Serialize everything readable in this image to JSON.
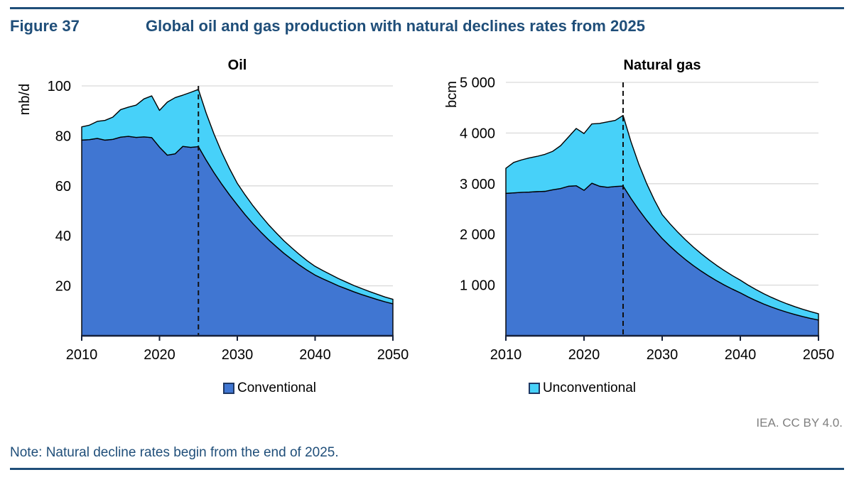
{
  "header": {
    "figure_label": "Figure 37",
    "title": "Global oil and gas production with natural declines rates from 2025"
  },
  "footer": {
    "attribution": "IEA. CC BY 4.0.",
    "note": "Note: Natural decline rates begin from the end of 2025."
  },
  "colors": {
    "conventional": "#4076D2",
    "unconventional": "#47D1F9",
    "navy": "#1F4E79",
    "gridline": "#D9D9D9",
    "axis": "#16213A",
    "outline": "#000000",
    "dashed_line": "#111111"
  },
  "legend": [
    {
      "label": "Conventional",
      "color_key": "conventional"
    },
    {
      "label": "Unconventional",
      "color_key": "unconventional"
    }
  ],
  "chart_data": [
    {
      "type": "area",
      "stacked": true,
      "title": "Oil",
      "ylabel": "mb/d",
      "ylim": [
        0,
        100
      ],
      "yticks": [
        20,
        40,
        60,
        80,
        100
      ],
      "ytick_labels": [
        "20",
        "40",
        "60",
        "80",
        "100"
      ],
      "xlim": [
        2010,
        2050
      ],
      "xticks": [
        2010,
        2020,
        2030,
        2040,
        2050
      ],
      "x_start": 2010,
      "annotation_line_x": 2025,
      "grid": true,
      "legend_position": "bottom",
      "series": [
        {
          "name": "Conventional",
          "values": [
            78.3,
            78.5,
            79.0,
            78.3,
            78.6,
            79.5,
            79.8,
            79.4,
            79.6,
            79.3,
            75.5,
            72.3,
            72.8,
            75.8,
            75.4,
            75.7,
            70.3,
            65.3,
            60.7,
            56.4,
            52.4,
            48.5,
            44.9,
            41.6,
            38.5,
            35.7,
            33.0,
            30.6,
            28.3,
            26.2,
            24.3,
            22.8,
            21.4,
            20.0,
            18.8,
            17.6,
            16.5,
            15.5,
            14.5,
            13.6,
            12.8
          ]
        },
        {
          "name": "Unconventional",
          "values": [
            5.3,
            5.8,
            6.8,
            7.9,
            8.9,
            11.0,
            11.7,
            12.9,
            15.2,
            16.7,
            14.7,
            21.2,
            22.5,
            20.5,
            22.0,
            22.9,
            18.8,
            15.5,
            12.7,
            10.5,
            8.6,
            7.9,
            7.2,
            6.6,
            6.0,
            5.5,
            5.0,
            4.6,
            4.2,
            3.8,
            3.5,
            3.3,
            3.1,
            2.9,
            2.7,
            2.5,
            2.4,
            2.2,
            2.1,
            1.9,
            1.8
          ]
        }
      ]
    },
    {
      "type": "area",
      "stacked": true,
      "title": "Natural gas",
      "ylabel": "bcm",
      "ylim": [
        0,
        5000
      ],
      "yticks": [
        1000,
        2000,
        3000,
        4000,
        5000
      ],
      "ytick_labels": [
        "1 000",
        "2 000",
        "3 000",
        "4 000",
        "5 000"
      ],
      "xlim": [
        2010,
        2050
      ],
      "xticks": [
        2010,
        2020,
        2030,
        2040,
        2050
      ],
      "x_start": 2010,
      "annotation_line_x": 2025,
      "grid": true,
      "legend_position": "bottom",
      "series": [
        {
          "name": "Conventional",
          "values": [
            2810,
            2820,
            2830,
            2835,
            2845,
            2850,
            2880,
            2905,
            2950,
            2960,
            2870,
            3010,
            2950,
            2930,
            2945,
            2955,
            2712,
            2488,
            2283,
            2095,
            1920,
            1769,
            1630,
            1502,
            1384,
            1276,
            1176,
            1083,
            998,
            920,
            848,
            767,
            694,
            627,
            567,
            513,
            464,
            419,
            379,
            343,
            310
          ]
        },
        {
          "name": "Unconventional",
          "values": [
            495,
            600,
            640,
            675,
            695,
            730,
            760,
            845,
            970,
            1130,
            1120,
            1170,
            1240,
            1290,
            1305,
            1393,
            1121,
            902,
            726,
            584,
            470,
            441,
            414,
            389,
            365,
            343,
            322,
            302,
            284,
            266,
            250,
            233,
            218,
            203,
            190,
            177,
            165,
            154,
            144,
            134,
            125
          ]
        }
      ]
    }
  ]
}
